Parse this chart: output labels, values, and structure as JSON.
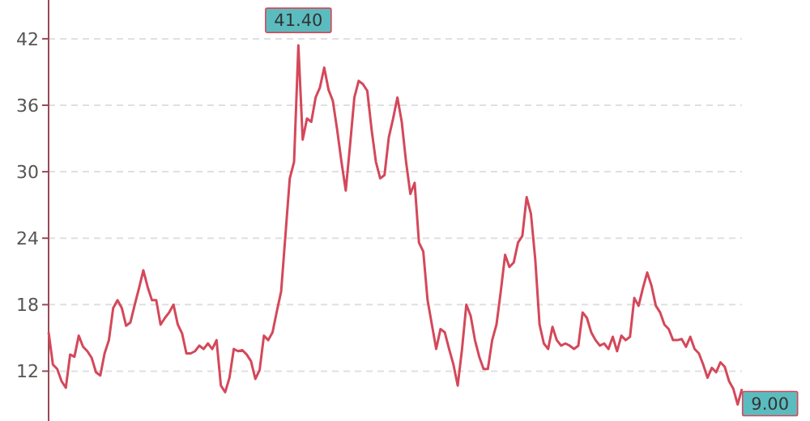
{
  "chart_data": {
    "type": "line",
    "categories": [
      null,
      null,
      null,
      null,
      null,
      null,
      null,
      null,
      null,
      null,
      null,
      null,
      null,
      null,
      null,
      null,
      null,
      null,
      null,
      null,
      null,
      null,
      null,
      null,
      null,
      null,
      null,
      null,
      null,
      null,
      null,
      null,
      null,
      null,
      null,
      null,
      null,
      null,
      null,
      null,
      null,
      null,
      null,
      null,
      null,
      null,
      null,
      null,
      null,
      null,
      null,
      null,
      null,
      null,
      null,
      null,
      null,
      null,
      null,
      null,
      null,
      null,
      null,
      null,
      null,
      null,
      null,
      null,
      null,
      null,
      null,
      null,
      null,
      null,
      null,
      null,
      null,
      null,
      null,
      null,
      null,
      null,
      null,
      null,
      null,
      null,
      null,
      null,
      null,
      null,
      null,
      null,
      null,
      null,
      null,
      null,
      null,
      null,
      null,
      null,
      null,
      null,
      null,
      null,
      null,
      null,
      null,
      null,
      null,
      null,
      null,
      null,
      null,
      null,
      null,
      null,
      null,
      null,
      null,
      null,
      null,
      null,
      null,
      null,
      null,
      null,
      null,
      null,
      null,
      null,
      null,
      null,
      null,
      null,
      null,
      null,
      null,
      null,
      null,
      null,
      null,
      null,
      null,
      null,
      null,
      null,
      null,
      null,
      null,
      null,
      null,
      null,
      null,
      null,
      null,
      null,
      null,
      null,
      null,
      null,
      null,
      null
    ],
    "series": [
      {
        "color": "#d4485a",
        "values": [
          15.5,
          12.6,
          12.2,
          11.1,
          10.5,
          13.5,
          13.3,
          15.2,
          14.2,
          13.8,
          13.2,
          11.9,
          11.6,
          13.6,
          14.8,
          17.7,
          18.4,
          17.7,
          16.1,
          16.4,
          18.0,
          19.5,
          21.1,
          19.6,
          18.4,
          18.4,
          16.2,
          16.8,
          17.3,
          18.0,
          16.2,
          15.4,
          13.6,
          13.6,
          13.8,
          14.3,
          14.0,
          14.5,
          14.0,
          14.8,
          10.7,
          10.1,
          11.4,
          14.0,
          13.8,
          13.9,
          13.5,
          12.9,
          11.3,
          12.1,
          15.2,
          14.8,
          15.5,
          17.4,
          19.2,
          24.3,
          29.4,
          30.9,
          41.4,
          32.9,
          34.8,
          34.5,
          36.7,
          37.6,
          39.4,
          37.4,
          36.4,
          33.8,
          30.9,
          28.3,
          32.4,
          36.7,
          38.2,
          37.9,
          37.3,
          33.8,
          30.9,
          29.4,
          29.7,
          33.1,
          34.8,
          36.7,
          34.5,
          30.9,
          28.0,
          29.0,
          23.6,
          22.8,
          18.4,
          16.2,
          14.0,
          15.8,
          15.5,
          14.0,
          12.6,
          10.7,
          14.0,
          18.0,
          17.0,
          14.8,
          13.3,
          12.2,
          12.2,
          14.8,
          16.2,
          19.2,
          22.5,
          21.4,
          21.8,
          23.6,
          24.2,
          27.7,
          26.2,
          22.1,
          16.2,
          14.5,
          14.0,
          16.0,
          14.8,
          14.3,
          14.5,
          14.3,
          14.0,
          14.3,
          17.3,
          16.8,
          15.5,
          14.8,
          14.3,
          14.5,
          14.0,
          15.1,
          13.8,
          15.2,
          14.8,
          15.1,
          18.6,
          17.9,
          19.5,
          20.9,
          19.7,
          17.9,
          17.3,
          16.2,
          15.8,
          14.8,
          14.8,
          14.9,
          14.2,
          15.1,
          14.0,
          13.6,
          12.6,
          11.4,
          12.3,
          11.9,
          12.8,
          12.4,
          11.1,
          10.4,
          9.0,
          10.4
        ],
        "value_labels": [
          null,
          null,
          null,
          null,
          null,
          null,
          null,
          null,
          null,
          null,
          null,
          null,
          null,
          null,
          null,
          null,
          null,
          null,
          null,
          null,
          null,
          null,
          null,
          null,
          null,
          null,
          null,
          null,
          null,
          null,
          null,
          null,
          null,
          null,
          null,
          null,
          null,
          null,
          null,
          null,
          null,
          null,
          null,
          null,
          null,
          null,
          null,
          null,
          null,
          null,
          null,
          null,
          null,
          null,
          null,
          null,
          null,
          null,
          "41.40",
          null,
          null,
          null,
          null,
          null,
          null,
          null,
          null,
          null,
          null,
          null,
          null,
          null,
          null,
          null,
          null,
          null,
          null,
          null,
          null,
          null,
          null,
          null,
          null,
          null,
          null,
          null,
          null,
          null,
          null,
          null,
          null,
          null,
          null,
          null,
          null,
          null,
          null,
          null,
          null,
          null,
          null,
          null,
          null,
          null,
          null,
          null,
          null,
          null,
          null,
          null,
          null,
          null,
          null,
          null,
          null,
          null,
          null,
          null,
          null,
          null,
          null,
          null,
          null,
          null,
          null,
          null,
          null,
          null,
          null,
          null,
          null,
          null,
          null,
          null,
          null,
          null,
          null,
          null,
          null,
          null,
          null,
          null,
          null,
          null,
          null,
          null,
          null,
          null,
          null,
          null,
          null,
          null,
          null,
          null,
          null,
          null,
          null,
          null,
          null,
          null,
          "9.00",
          null
        ]
      }
    ],
    "ylim": [
      7.5,
      45.5
    ],
    "yticks": [
      12,
      18,
      24,
      30,
      36,
      42
    ],
    "grid": "y",
    "tick_labels": "y",
    "marker": "none",
    "line_style": "solid"
  }
}
